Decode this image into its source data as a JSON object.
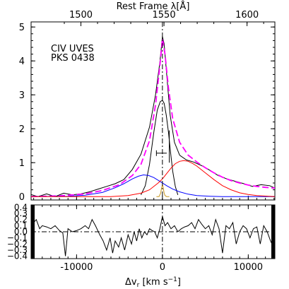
{
  "chart_data": [
    {
      "type": "line",
      "panel": "top",
      "top_axis_label": "Rest Frame λ[Å]",
      "top_ticks": [
        1500,
        1550,
        1600
      ],
      "xlim": [
        -15300,
        13100
      ],
      "ylim": [
        -0.1,
        5.15
      ],
      "y_ticks": [
        0,
        1,
        2,
        3,
        4,
        5
      ],
      "annotations": [
        "CIV UVES",
        "PKS 0438"
      ],
      "series": [
        {
          "color": "#000000",
          "x": [
            -15300,
            -14500,
            -13500,
            -12500,
            -11500,
            -10500,
            -9500,
            -8500,
            -7500,
            -6500,
            -5500,
            -4500,
            -3500,
            -2500,
            -1500,
            -800,
            -300,
            0,
            200,
            500,
            900,
            1400,
            2000,
            2800,
            3600,
            4500,
            5500,
            6500,
            7500,
            8500,
            9500,
            10500,
            11500,
            12500,
            13100
          ],
          "y": [
            0.06,
            0.0,
            0.08,
            0.0,
            0.1,
            0.05,
            0.08,
            0.14,
            0.22,
            0.3,
            0.38,
            0.5,
            0.8,
            1.25,
            2.05,
            3.0,
            3.95,
            4.72,
            4.5,
            3.6,
            2.4,
            1.6,
            1.22,
            1.08,
            1.02,
            0.92,
            0.78,
            0.62,
            0.52,
            0.45,
            0.38,
            0.3,
            0.35,
            0.32,
            0.25
          ]
        },
        {
          "color": "#ff00ff",
          "dashed": true,
          "x": [
            -15300,
            -12000,
            -9000,
            -7000,
            -5000,
            -3500,
            -2500,
            -1500,
            -800,
            -300,
            0,
            300,
            700,
            1200,
            2000,
            3000,
            4000,
            5000,
            6000,
            7000,
            8000,
            9000,
            10000,
            11000,
            12000,
            13100
          ],
          "y": [
            0.0,
            0.02,
            0.08,
            0.18,
            0.35,
            0.62,
            0.95,
            1.65,
            2.7,
            3.85,
            4.65,
            4.2,
            3.2,
            2.3,
            1.6,
            1.22,
            1.02,
            0.85,
            0.7,
            0.57,
            0.47,
            0.4,
            0.34,
            0.3,
            0.27,
            0.25
          ]
        },
        {
          "color": "#000000",
          "x": [
            -2500,
            -2000,
            -1500,
            -1000,
            -600,
            -250,
            0,
            200,
            450,
            700,
            950,
            1200,
            1500,
            1800
          ],
          "y": [
            0.05,
            0.32,
            0.95,
            1.9,
            2.55,
            2.8,
            2.84,
            2.75,
            2.4,
            1.9,
            1.3,
            0.75,
            0.3,
            0.05
          ]
        },
        {
          "color": "#0000ff",
          "x": [
            -15300,
            -11000,
            -9000,
            -7000,
            -5500,
            -4500,
            -3500,
            -2800,
            -2200,
            -1600,
            -1000,
            -300,
            500,
            1200,
            2000,
            3000,
            4000,
            5500,
            7000,
            13100
          ],
          "y": [
            0.0,
            0.01,
            0.04,
            0.12,
            0.26,
            0.38,
            0.52,
            0.6,
            0.64,
            0.62,
            0.56,
            0.45,
            0.32,
            0.22,
            0.14,
            0.07,
            0.03,
            0.01,
            0.0,
            0.0
          ]
        },
        {
          "color": "#ff0000",
          "x": [
            -15300,
            -6000,
            -4000,
            -2500,
            -1500,
            -500,
            0,
            500,
            1000,
            1500,
            2000,
            2500,
            3000,
            3500,
            4000,
            5000,
            6000,
            7000,
            8000,
            9000,
            10000,
            11000,
            13100
          ],
          "y": [
            0.0,
            0.0,
            0.03,
            0.1,
            0.2,
            0.4,
            0.52,
            0.68,
            0.84,
            0.97,
            1.04,
            1.06,
            1.04,
            0.98,
            0.9,
            0.7,
            0.5,
            0.32,
            0.2,
            0.11,
            0.06,
            0.03,
            0.0
          ]
        },
        {
          "color": "#c8961e",
          "x": [
            -700,
            -400,
            -200,
            -100,
            0,
            100,
            200,
            300,
            500,
            800
          ],
          "y": [
            0.0,
            0.0,
            0.1,
            0.25,
            0.35,
            0.25,
            0.1,
            0.03,
            0.0,
            0.0
          ]
        }
      ]
    },
    {
      "type": "line",
      "panel": "bottom",
      "xlabel": "Δv",
      "xlabel_sub": "r",
      "xlabel_units": " [km s",
      "xlabel_sup": "−1",
      "xlabel_close": "]",
      "xlim": [
        -15300,
        13100
      ],
      "ylim": [
        -0.44,
        0.44
      ],
      "x_ticks": [
        -10000,
        0,
        10000
      ],
      "y_ticks": [
        "0.4",
        "0.3",
        "0.2",
        "0.1",
        "0.0",
        "−0.1",
        "−0.2",
        "−0.3",
        "−0.4"
      ],
      "series": [
        {
          "color": "#000000",
          "x": [
            -15300,
            -14700,
            -14300,
            -14000,
            -13500,
            -13000,
            -12500,
            -12000,
            -11600,
            -11300,
            -11000,
            -10500,
            -10000,
            -9500,
            -9000,
            -8600,
            -8200,
            -7800,
            -7300,
            -6900,
            -6500,
            -6100,
            -5800,
            -5500,
            -5100,
            -4800,
            -4400,
            -4000,
            -3600,
            -3300,
            -3000,
            -2700,
            -2400,
            -2100,
            -1800,
            -1500,
            -1200,
            -900,
            -600,
            -300,
            0,
            300,
            600,
            1000,
            1400,
            1800,
            2200,
            2600,
            3000,
            3400,
            3800,
            4200,
            4600,
            5000,
            5400,
            5800,
            6200,
            6600,
            7000,
            7400,
            7800,
            8200,
            8600,
            9000,
            9400,
            9800,
            10200,
            10600,
            11000,
            11400,
            11800,
            12200,
            12600,
            13100
          ],
          "y": [
            0.1,
            0.2,
            0.05,
            0.1,
            0.08,
            0.05,
            0.1,
            0.02,
            -0.02,
            -0.4,
            0.05,
            0.0,
            0.02,
            0.05,
            0.1,
            0.05,
            0.2,
            0.1,
            -0.05,
            -0.15,
            -0.3,
            -0.1,
            -0.35,
            -0.15,
            -0.25,
            -0.1,
            -0.3,
            -0.05,
            -0.2,
            0.0,
            -0.15,
            0.05,
            -0.1,
            0.0,
            -0.05,
            0.05,
            0.02,
            0.0,
            -0.1,
            0.05,
            0.25,
            0.1,
            0.15,
            0.05,
            0.1,
            0.0,
            0.05,
            0.08,
            0.1,
            0.15,
            0.05,
            0.2,
            0.12,
            0.05,
            0.1,
            -0.05,
            0.2,
            0.05,
            -0.35,
            0.1,
            0.05,
            0.15,
            -0.2,
            0.0,
            0.1,
            0.05,
            -0.1,
            0.05,
            0.08,
            -0.2,
            0.1,
            0.0,
            -0.15,
            -0.3
          ]
        }
      ]
    }
  ]
}
